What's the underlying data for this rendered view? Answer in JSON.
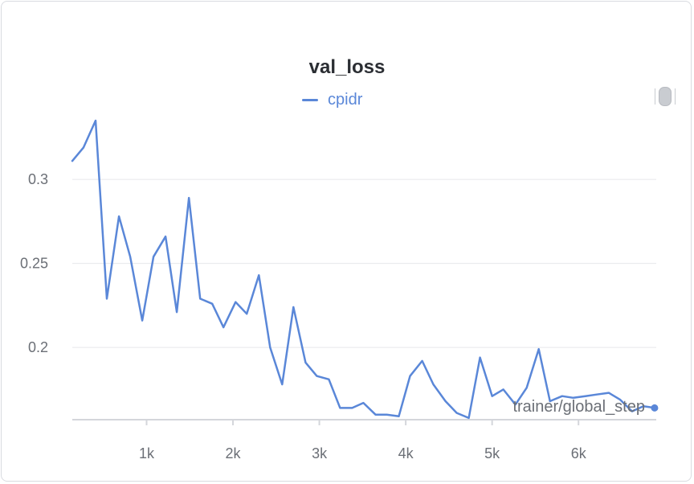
{
  "panel": {
    "title": "val_loss",
    "drag_handle_icon": "drag-handle-icon"
  },
  "colors": {
    "series": "#5a87d8",
    "grid": "#e6e8eb",
    "axis": "#d4d6db",
    "text": "#6b6f76"
  },
  "chart_data": {
    "type": "line",
    "title": "val_loss",
    "xlabel": "trainer/global_step",
    "ylabel": "",
    "xlim": [
      140,
      6900
    ],
    "ylim": [
      0.157,
      0.335
    ],
    "xticks": [
      1000,
      2000,
      3000,
      4000,
      5000,
      6000
    ],
    "xtick_labels": [
      "1k",
      "2k",
      "3k",
      "4k",
      "5k",
      "6k"
    ],
    "yticks": [
      0.2,
      0.25,
      0.3
    ],
    "ytick_labels": [
      "0.2",
      "0.25",
      "0.3"
    ],
    "grid": true,
    "legend": "top-center",
    "series": [
      {
        "name": "cpidr",
        "x": [
          140,
          270,
          410,
          540,
          680,
          810,
          950,
          1080,
          1220,
          1350,
          1490,
          1620,
          1760,
          1890,
          2030,
          2160,
          2300,
          2430,
          2570,
          2700,
          2840,
          2970,
          3110,
          3240,
          3380,
          3510,
          3650,
          3780,
          3920,
          4050,
          4190,
          4320,
          4460,
          4590,
          4730,
          4860,
          5000,
          5130,
          5270,
          5400,
          5540,
          5670,
          5810,
          5940,
          6080,
          6210,
          6350,
          6480,
          6620,
          6750,
          6890
        ],
        "values": [
          0.311,
          0.319,
          0.335,
          0.229,
          0.278,
          0.254,
          0.216,
          0.254,
          0.266,
          0.221,
          0.289,
          0.229,
          0.226,
          0.212,
          0.227,
          0.22,
          0.243,
          0.2,
          0.178,
          0.224,
          0.191,
          0.183,
          0.181,
          0.164,
          0.164,
          0.167,
          0.16,
          0.16,
          0.159,
          0.183,
          0.192,
          0.178,
          0.168,
          0.161,
          0.158,
          0.194,
          0.171,
          0.175,
          0.166,
          0.176,
          0.199,
          0.168,
          0.171,
          0.17,
          0.171,
          0.172,
          0.173,
          0.169,
          0.162,
          0.165,
          0.164
        ]
      }
    ]
  }
}
